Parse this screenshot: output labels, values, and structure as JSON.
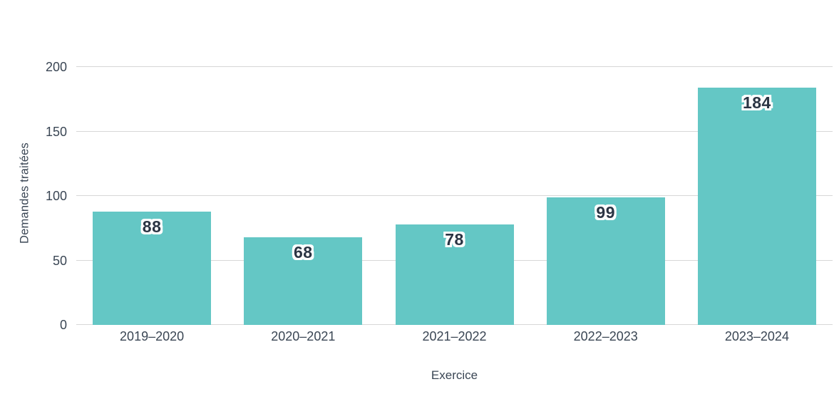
{
  "chart_data": {
    "type": "bar",
    "categories": [
      "2019–2020",
      "2020–2021",
      "2021–2022",
      "2022–2023",
      "2023–2024"
    ],
    "values": [
      88,
      68,
      78,
      99,
      184
    ],
    "title": "",
    "xlabel": "Exercice",
    "ylabel": "Demandes traitées",
    "ylim": [
      0,
      200
    ],
    "yticks": [
      0,
      50,
      100,
      150,
      200
    ],
    "grid": true,
    "legend": "none",
    "bar_color": "#64c7c5",
    "value_label_color": "#2b3544",
    "axis_text_color": "#3a4654",
    "gridline_color": "#d7d7d7",
    "background_color": "#ffffff"
  }
}
